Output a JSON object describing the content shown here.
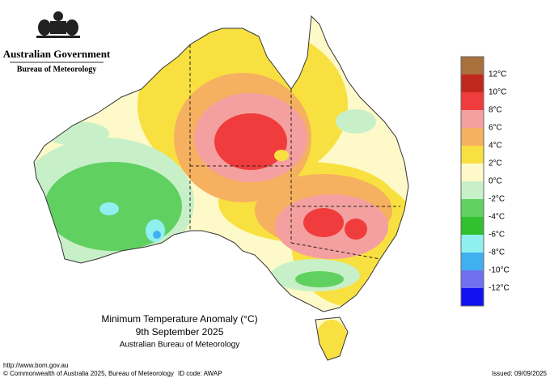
{
  "header": {
    "government": "Australian Government",
    "agency": "Bureau of Meteorology"
  },
  "title": {
    "line1": "Minimum Temperature Anomaly (°C)",
    "line2": "9th September 2025",
    "line3": "Australian Bureau of Meteorology"
  },
  "legend": {
    "labels": [
      "12°C",
      "10°C",
      "8°C",
      "6°C",
      "4°C",
      "2°C",
      "0°C",
      "-2°C",
      "-4°C",
      "-6°C",
      "-8°C",
      "-10°C",
      "-12°C"
    ],
    "colors": [
      "#a8703c",
      "#c0281e",
      "#f03c3c",
      "#f5a0a0",
      "#f5b060",
      "#f8e040",
      "#fdf9c8",
      "#c8f0c8",
      "#60d060",
      "#30c030",
      "#90f0f0",
      "#40b0f0",
      "#7070f0",
      "#1010f0"
    ]
  },
  "footer": {
    "url": "http://www.bom.gov.au",
    "copyright": "© Commonwealth of Australia 2025, Bureau of Meteorology",
    "id_code": "ID code: AWAP",
    "issued": "Issued: 09/09/2025"
  }
}
